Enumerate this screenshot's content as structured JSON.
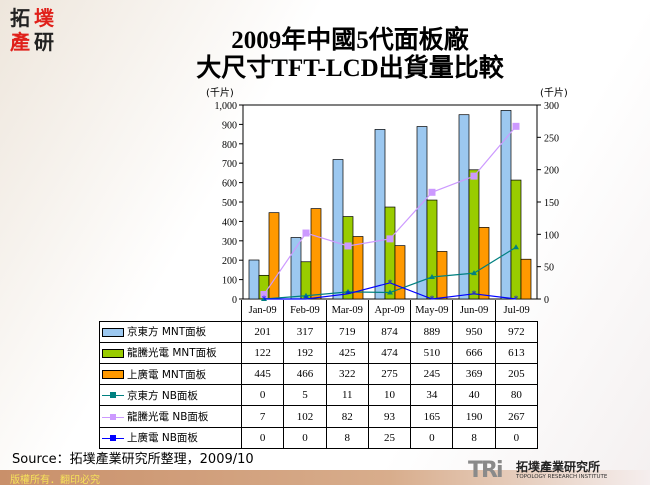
{
  "logo": {
    "chars": [
      "拓",
      "墣",
      "產",
      "研"
    ]
  },
  "title_line1": "2009年中國5代面板廠",
  "title_line2": "大尺寸TFT-LCD出貨量比較",
  "chart_data": {
    "type": "bar+line",
    "title": "2009年中國5代面板廠 大尺寸TFT-LCD出貨量比較",
    "categories": [
      "Jan-09",
      "Feb-09",
      "Mar-09",
      "Apr-09",
      "May-09",
      "Jun-09",
      "Jul-09"
    ],
    "y_left": {
      "label": "(千片)",
      "range": [
        0,
        1000
      ],
      "ticks": [
        "0",
        "100",
        "200",
        "300",
        "400",
        "500",
        "600",
        "700",
        "800",
        "900",
        "1,000"
      ]
    },
    "y_right": {
      "label": "(千片)",
      "range": [
        0,
        300
      ],
      "ticks": [
        "0",
        "50",
        "100",
        "150",
        "200",
        "250",
        "300"
      ]
    },
    "series": [
      {
        "name": "京東方 MNT面板",
        "type": "bar",
        "axis": "left",
        "color": "#9cc8f0",
        "values": [
          201,
          317,
          719,
          874,
          889,
          950,
          972
        ]
      },
      {
        "name": "龍騰光電 MNT面板",
        "type": "bar",
        "axis": "left",
        "color": "#99cc00",
        "values": [
          122,
          192,
          425,
          474,
          510,
          666,
          613
        ]
      },
      {
        "name": "上廣電 MNT面板",
        "type": "bar",
        "axis": "left",
        "color": "#ff9900",
        "values": [
          445,
          466,
          322,
          275,
          245,
          369,
          205
        ]
      },
      {
        "name": "京東方 NB面板",
        "type": "line",
        "axis": "right",
        "color": "#008080",
        "marker": "triangle",
        "values": [
          0,
          5,
          11,
          10,
          34,
          40,
          80
        ]
      },
      {
        "name": "龍騰光電 NB面板",
        "type": "line",
        "axis": "right",
        "color": "#cc99ff",
        "marker": "square",
        "values": [
          7,
          102,
          82,
          93,
          165,
          190,
          267
        ]
      },
      {
        "name": "上廣電 NB面板",
        "type": "line",
        "axis": "right",
        "color": "#0000ff",
        "marker": "star",
        "values": [
          0,
          0,
          8,
          25,
          0,
          8,
          0
        ]
      }
    ],
    "grid": false,
    "legend": "data-table"
  },
  "source": "Source：拓墣產業研究所整理，2009/10",
  "footer": "版權所有．翻印必究",
  "brand": {
    "mark": "TRi",
    "cn": "拓墣產業研究所",
    "en": "TOPOLOGY RESEARCH INSTITUTE"
  }
}
